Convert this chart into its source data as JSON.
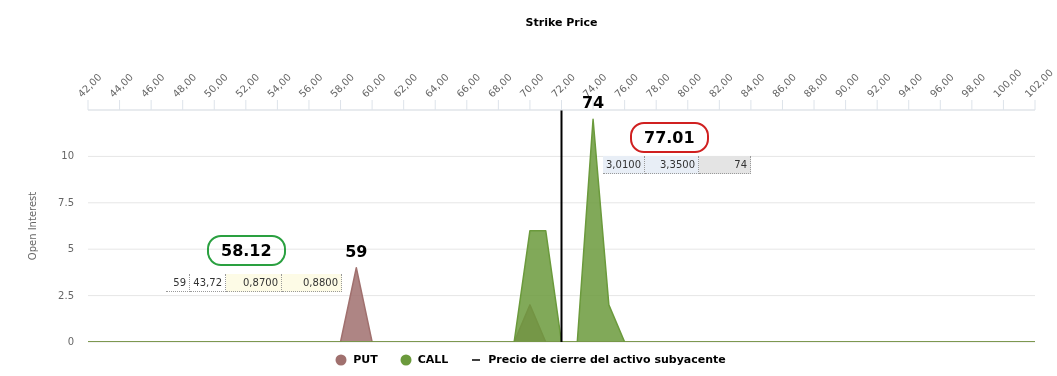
{
  "chart_data": {
    "type": "area",
    "xlabel": "Strike Price",
    "ylabel": "Open Interest",
    "xlim": [
      42,
      102
    ],
    "xticks": [
      {
        "value": 42,
        "label": "42,00"
      },
      {
        "value": 44,
        "label": "44,00"
      },
      {
        "value": 46,
        "label": "46,00"
      },
      {
        "value": 48,
        "label": "48,00"
      },
      {
        "value": 50,
        "label": "50,00"
      },
      {
        "value": 52,
        "label": "52,00"
      },
      {
        "value": 54,
        "label": "54,00"
      },
      {
        "value": 56,
        "label": "56,00"
      },
      {
        "value": 58,
        "label": "58,00"
      },
      {
        "value": 60,
        "label": "60,00"
      },
      {
        "value": 62,
        "label": "62,00"
      },
      {
        "value": 64,
        "label": "64,00"
      },
      {
        "value": 66,
        "label": "66,00"
      },
      {
        "value": 68,
        "label": "68,00"
      },
      {
        "value": 70,
        "label": "70,00"
      },
      {
        "value": 72,
        "label": "72,00"
      },
      {
        "value": 74,
        "label": "74,00"
      },
      {
        "value": 76,
        "label": "76,00"
      },
      {
        "value": 78,
        "label": "78,00"
      },
      {
        "value": 80,
        "label": "80,00"
      },
      {
        "value": 82,
        "label": "82,00"
      },
      {
        "value": 84,
        "label": "84,00"
      },
      {
        "value": 86,
        "label": "86,00"
      },
      {
        "value": 88,
        "label": "88,00"
      },
      {
        "value": 90,
        "label": "90,00"
      },
      {
        "value": 92,
        "label": "92,00"
      },
      {
        "value": 94,
        "label": "94,00"
      },
      {
        "value": 96,
        "label": "96,00"
      },
      {
        "value": 98,
        "label": "98,00"
      },
      {
        "value": 100,
        "label": "100,00"
      },
      {
        "value": 102,
        "label": "102,00"
      }
    ],
    "ylim": [
      0,
      12.5
    ],
    "yticks": [
      0,
      2.5,
      5,
      7.5,
      10,
      {
        "value": 12.5,
        "label": null
      }
    ],
    "grid": "y",
    "legend": "bottom",
    "marker": "none",
    "series": [
      {
        "name": "PUT",
        "color": "#a0706e",
        "x": [
          42,
          58,
          59,
          60,
          69,
          70,
          71,
          102
        ],
        "values": [
          0,
          0,
          4,
          0,
          0,
          2,
          0,
          0
        ]
      },
      {
        "name": "CALL",
        "color": "#6b9a3c",
        "x": [
          42,
          69,
          70,
          71,
          72,
          73,
          74,
          75,
          76,
          102
        ],
        "values": [
          0,
          0,
          6,
          6,
          0,
          0,
          12,
          2,
          0,
          0
        ]
      }
    ],
    "ref_lines": [
      {
        "axis": "x",
        "value": 72,
        "label": "Precio de cierre del activo subyacente",
        "color": "#000000"
      }
    ],
    "annotations": [
      {
        "text": "74",
        "x": 74,
        "y": 12
      },
      {
        "text": "59",
        "x": 59,
        "y": 4
      },
      "77.01",
      "58.12",
      "3,0100",
      "3,3500",
      "74",
      "59",
      "43,72",
      "0,8700",
      "0,8800"
    ]
  }
}
